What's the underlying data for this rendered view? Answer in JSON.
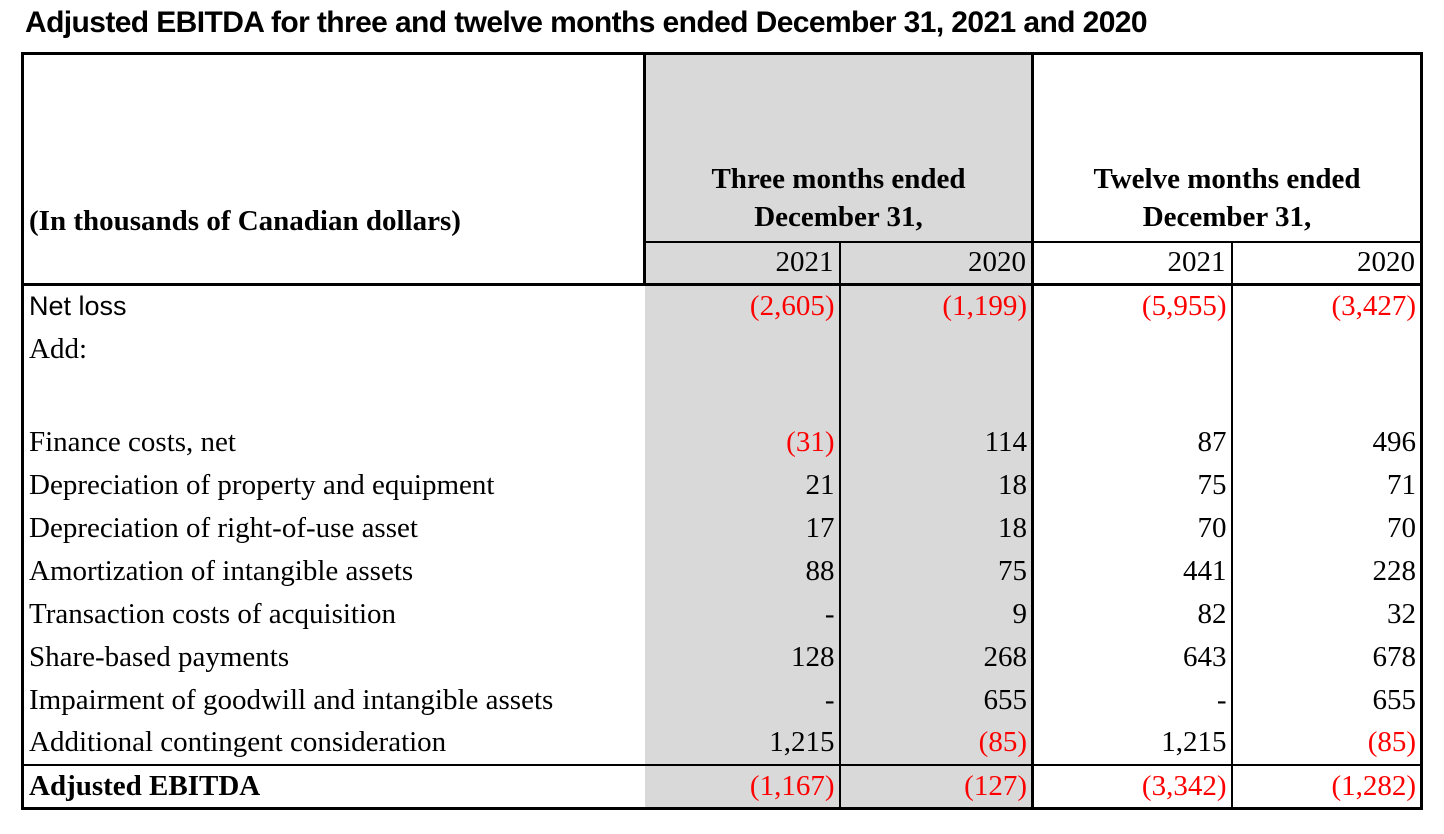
{
  "title": "Adjusted EBITDA for three and twelve months ended December 31, 2021 and 2020",
  "colors": {
    "negative_value": "#fe0000",
    "shaded_column": "#d9d9d9",
    "border": "#000000"
  },
  "table": {
    "corner_label": "(In thousands of Canadian dollars)",
    "column_groups": [
      {
        "label": "Three months ended\nDecember 31,",
        "shaded": true
      },
      {
        "label": "Twelve months ended\nDecember 31,",
        "shaded": false
      }
    ],
    "year_headers": [
      "2021",
      "2020",
      "2021",
      "2020"
    ],
    "rows": [
      {
        "label": "Net loss",
        "label_font": "sans",
        "values": [
          "(2,605)",
          "(1,199)",
          "(5,955)",
          "(3,427)"
        ]
      },
      {
        "label": "Add:",
        "values": [
          "",
          "",
          "",
          ""
        ]
      },
      {
        "label": "",
        "spacer": true,
        "values": [
          "",
          "",
          "",
          ""
        ]
      },
      {
        "label": "Finance costs, net",
        "values": [
          "(31)",
          "114",
          "87",
          "496"
        ]
      },
      {
        "label": "Depreciation of property and equipment",
        "values": [
          "21",
          "18",
          "75",
          "71"
        ]
      },
      {
        "label": "Depreciation of right-of-use asset",
        "values": [
          "17",
          "18",
          "70",
          "70"
        ]
      },
      {
        "label": "Amortization of intangible assets",
        "values": [
          "88",
          "75",
          "441",
          "228"
        ]
      },
      {
        "label": "Transaction costs of acquisition",
        "values": [
          "-",
          "9",
          "82",
          "32"
        ]
      },
      {
        "label": "Share-based payments",
        "values": [
          "128",
          "268",
          "643",
          "678"
        ]
      },
      {
        "label": "Impairment of goodwill and intangible assets",
        "values": [
          "-",
          "655",
          "-",
          "655"
        ]
      },
      {
        "label": "Additional contingent consideration",
        "values": [
          "1,215",
          "(85)",
          "1,215",
          "(85)"
        ]
      }
    ],
    "total_row": {
      "label": "Adjusted EBITDA",
      "values": [
        "(1,167)",
        "(127)",
        "(3,342)",
        "(1,282)"
      ]
    }
  }
}
